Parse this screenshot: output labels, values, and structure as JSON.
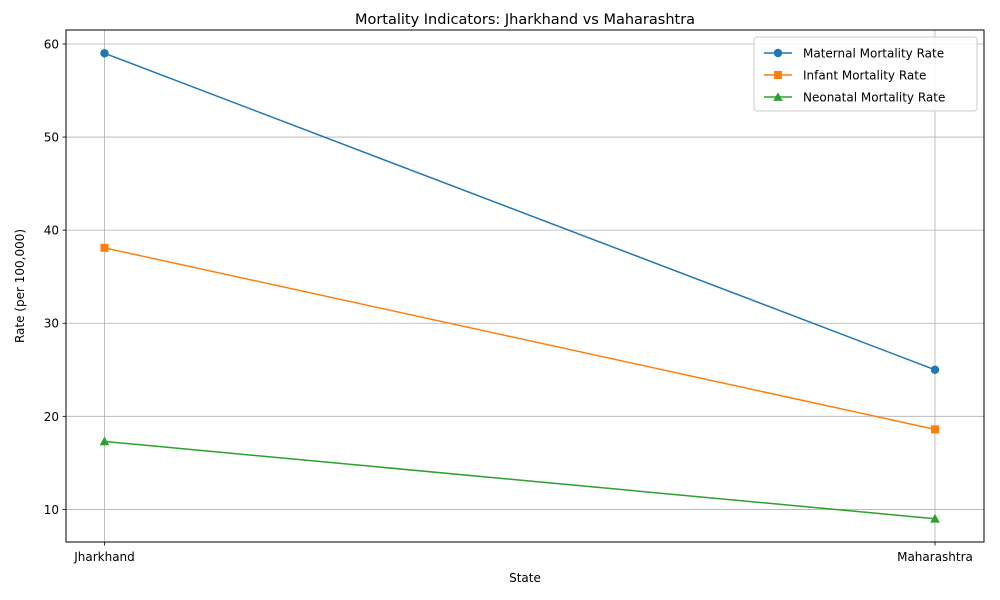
{
  "chart_data": {
    "type": "line",
    "title": "Mortality Indicators: Jharkhand vs Maharashtra",
    "xlabel": "State",
    "ylabel": "Rate (per 100,000)",
    "categories": [
      "Jharkhand",
      "Maharashtra"
    ],
    "ylim": [
      6.5,
      61.5
    ],
    "yticks": [
      10,
      20,
      30,
      40,
      50,
      60
    ],
    "grid": true,
    "legend_position": "top-right",
    "series": [
      {
        "name": "Maternal Mortality Rate",
        "values": [
          59,
          25
        ],
        "color": "#1f77b4",
        "marker": "circle"
      },
      {
        "name": "Infant Mortality Rate",
        "values": [
          38.1,
          18.6
        ],
        "color": "#ff7f0e",
        "marker": "square"
      },
      {
        "name": "Neonatal Mortality Rate",
        "values": [
          17.3,
          9
        ],
        "color": "#2ca02c",
        "marker": "triangle"
      }
    ]
  }
}
